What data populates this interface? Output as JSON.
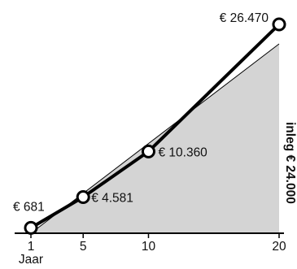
{
  "chart_data": {
    "type": "line",
    "x": [
      1,
      5,
      10,
      20
    ],
    "xlim": [
      1,
      20
    ],
    "ylim": [
      0,
      26470
    ],
    "xlabel": "Jaar",
    "x_tick_labels": [
      "1",
      "5",
      "10",
      "20"
    ],
    "series": [
      {
        "values": [
          681,
          4581,
          10360,
          26470
        ],
        "labels": [
          "€ 681",
          "€ 4.581",
          "€ 10.360",
          "€ 26.470"
        ]
      }
    ],
    "deposit_area": {
      "label": "inleg € 24.000",
      "start_value": 0,
      "end_value": 24000
    },
    "colors": {
      "area_fill": "#d4d4d4",
      "line": "#000000",
      "marker_fill": "#ffffff"
    },
    "grid": false,
    "legend": "none"
  }
}
